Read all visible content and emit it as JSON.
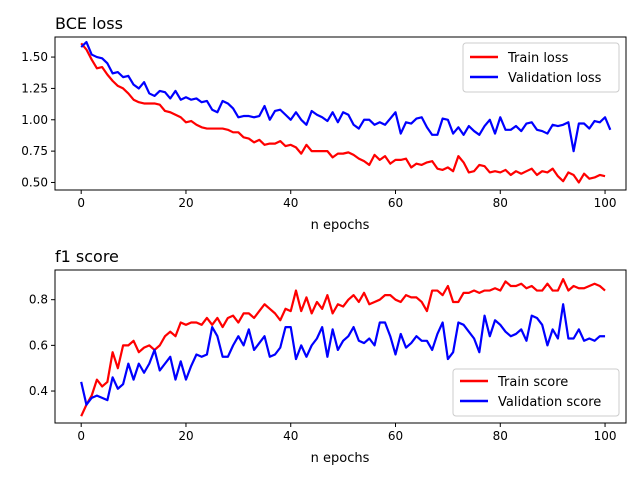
{
  "chart_data": [
    {
      "type": "line",
      "title": "BCE loss",
      "xlabel": "n epochs",
      "ylabel": "",
      "xlim": [
        -5,
        104
      ],
      "ylim": [
        0.44,
        1.66
      ],
      "xticks": [
        0,
        20,
        40,
        60,
        80,
        100
      ],
      "yticks": [
        0.5,
        0.75,
        1.0,
        1.25,
        1.5
      ],
      "ytick_labels": [
        "0.50",
        "0.75",
        "1.00",
        "1.25",
        "1.50"
      ],
      "legend_position": "top-right",
      "series": [
        {
          "name": "Train loss",
          "color": "#ff0000",
          "values": [
            1.61,
            1.56,
            1.48,
            1.41,
            1.42,
            1.36,
            1.31,
            1.27,
            1.25,
            1.21,
            1.16,
            1.14,
            1.13,
            1.13,
            1.13,
            1.12,
            1.07,
            1.06,
            1.04,
            1.02,
            0.98,
            0.99,
            0.96,
            0.94,
            0.93,
            0.93,
            0.93,
            0.93,
            0.92,
            0.9,
            0.9,
            0.86,
            0.85,
            0.82,
            0.84,
            0.8,
            0.81,
            0.81,
            0.83,
            0.79,
            0.8,
            0.78,
            0.73,
            0.8,
            0.75,
            0.75,
            0.75,
            0.75,
            0.7,
            0.73,
            0.73,
            0.74,
            0.72,
            0.69,
            0.67,
            0.64,
            0.72,
            0.68,
            0.71,
            0.65,
            0.68,
            0.68,
            0.69,
            0.62,
            0.65,
            0.64,
            0.66,
            0.67,
            0.61,
            0.6,
            0.62,
            0.59,
            0.71,
            0.66,
            0.58,
            0.59,
            0.64,
            0.63,
            0.58,
            0.59,
            0.58,
            0.6,
            0.56,
            0.59,
            0.57,
            0.59,
            0.61,
            0.56,
            0.59,
            0.58,
            0.61,
            0.55,
            0.51,
            0.58,
            0.56,
            0.5,
            0.57,
            0.53,
            0.54,
            0.56,
            0.55
          ]
        },
        {
          "name": "Validation loss",
          "color": "#0000ff",
          "values": [
            1.58,
            1.62,
            1.52,
            1.5,
            1.49,
            1.45,
            1.37,
            1.38,
            1.34,
            1.35,
            1.28,
            1.25,
            1.3,
            1.21,
            1.19,
            1.23,
            1.22,
            1.17,
            1.23,
            1.16,
            1.18,
            1.16,
            1.17,
            1.14,
            1.15,
            1.08,
            1.06,
            1.15,
            1.13,
            1.09,
            1.02,
            1.03,
            1.03,
            1.02,
            1.03,
            1.11,
            1.0,
            1.07,
            1.08,
            1.04,
            1.0,
            1.06,
            1.0,
            0.96,
            1.07,
            1.04,
            1.02,
            0.99,
            1.06,
            0.98,
            1.06,
            1.04,
            0.96,
            0.93,
            1.0,
            1.0,
            0.96,
            0.98,
            0.96,
            1.01,
            1.06,
            0.89,
            0.98,
            0.97,
            1.01,
            1.02,
            0.94,
            0.88,
            0.88,
            1.01,
            1.0,
            0.89,
            0.94,
            0.88,
            0.95,
            0.91,
            0.88,
            0.95,
            1.0,
            0.89,
            1.02,
            0.92,
            0.92,
            0.95,
            0.91,
            0.97,
            0.98,
            0.92,
            0.91,
            0.89,
            0.96,
            0.95,
            0.96,
            0.98,
            0.75,
            0.97,
            0.97,
            0.93,
            0.99,
            0.98,
            1.02,
            0.92
          ]
        }
      ]
    },
    {
      "type": "line",
      "title": "f1 score",
      "xlabel": "n epochs",
      "ylabel": "",
      "xlim": [
        -5,
        104
      ],
      "ylim": [
        0.26,
        0.93
      ],
      "xticks": [
        0,
        20,
        40,
        60,
        80,
        100
      ],
      "yticks": [
        0.4,
        0.6,
        0.8
      ],
      "ytick_labels": [
        "0.4",
        "0.6",
        "0.8"
      ],
      "legend_position": "bottom-right",
      "series": [
        {
          "name": "Train score",
          "color": "#ff0000",
          "values": [
            0.29,
            0.34,
            0.38,
            0.45,
            0.42,
            0.44,
            0.57,
            0.5,
            0.6,
            0.6,
            0.62,
            0.57,
            0.59,
            0.6,
            0.58,
            0.6,
            0.64,
            0.66,
            0.64,
            0.7,
            0.69,
            0.7,
            0.7,
            0.69,
            0.72,
            0.69,
            0.72,
            0.68,
            0.72,
            0.73,
            0.7,
            0.74,
            0.74,
            0.72,
            0.75,
            0.78,
            0.76,
            0.74,
            0.71,
            0.76,
            0.75,
            0.84,
            0.75,
            0.81,
            0.74,
            0.79,
            0.76,
            0.82,
            0.74,
            0.78,
            0.77,
            0.8,
            0.82,
            0.79,
            0.83,
            0.78,
            0.79,
            0.8,
            0.82,
            0.82,
            0.8,
            0.79,
            0.82,
            0.81,
            0.81,
            0.79,
            0.75,
            0.84,
            0.84,
            0.82,
            0.86,
            0.79,
            0.79,
            0.83,
            0.83,
            0.84,
            0.83,
            0.84,
            0.84,
            0.85,
            0.84,
            0.88,
            0.86,
            0.86,
            0.87,
            0.85,
            0.86,
            0.84,
            0.84,
            0.87,
            0.84,
            0.84,
            0.89,
            0.84,
            0.86,
            0.85,
            0.85,
            0.86,
            0.87,
            0.86,
            0.84
          ]
        },
        {
          "name": "Validation score",
          "color": "#0000ff",
          "values": [
            0.44,
            0.34,
            0.37,
            0.38,
            0.37,
            0.36,
            0.46,
            0.41,
            0.43,
            0.52,
            0.45,
            0.52,
            0.48,
            0.52,
            0.58,
            0.49,
            0.52,
            0.55,
            0.45,
            0.53,
            0.45,
            0.51,
            0.56,
            0.55,
            0.56,
            0.68,
            0.64,
            0.55,
            0.55,
            0.6,
            0.64,
            0.6,
            0.67,
            0.58,
            0.61,
            0.64,
            0.55,
            0.56,
            0.59,
            0.68,
            0.68,
            0.54,
            0.6,
            0.55,
            0.6,
            0.63,
            0.68,
            0.55,
            0.67,
            0.58,
            0.62,
            0.64,
            0.68,
            0.62,
            0.61,
            0.63,
            0.6,
            0.7,
            0.7,
            0.64,
            0.56,
            0.65,
            0.59,
            0.61,
            0.64,
            0.62,
            0.62,
            0.58,
            0.65,
            0.7,
            0.54,
            0.57,
            0.7,
            0.69,
            0.66,
            0.63,
            0.57,
            0.73,
            0.64,
            0.71,
            0.69,
            0.66,
            0.64,
            0.65,
            0.67,
            0.62,
            0.73,
            0.72,
            0.69,
            0.6,
            0.67,
            0.63,
            0.78,
            0.63,
            0.63,
            0.67,
            0.62,
            0.63,
            0.62,
            0.64,
            0.64
          ]
        }
      ]
    }
  ]
}
